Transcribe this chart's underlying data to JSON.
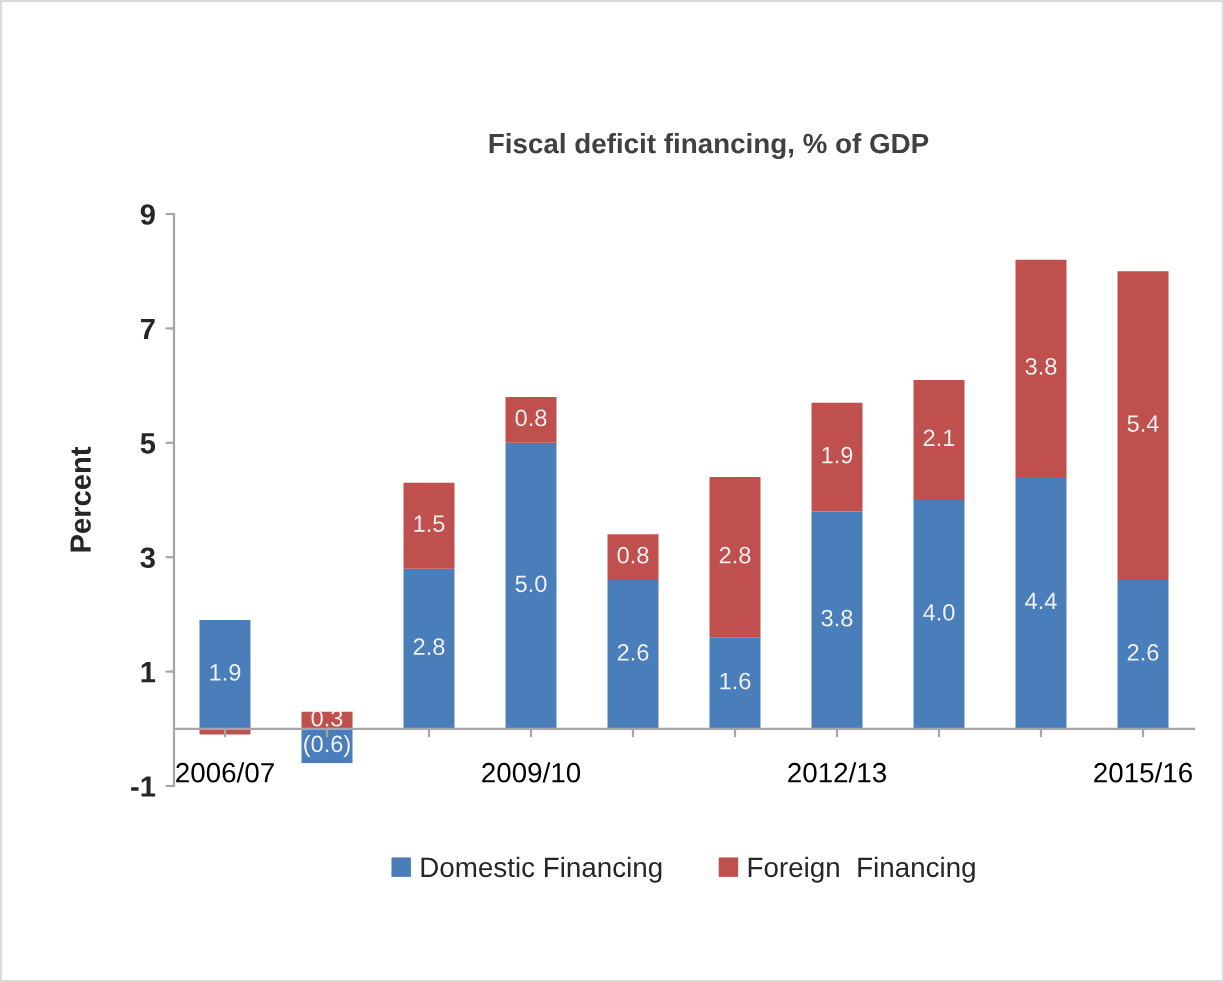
{
  "chart_data": {
    "type": "bar",
    "title": "Fiscal deficit financing, % of GDP",
    "ylabel": "Percent",
    "categories": [
      "2006/07",
      null,
      null,
      "2009/10",
      null,
      null,
      "2012/13",
      null,
      null,
      "2015/16"
    ],
    "stacked": true,
    "series": [
      {
        "name": "Domestic Financing",
        "color": "#4a7ebb",
        "values": [
          1.9,
          -0.6,
          2.8,
          5.0,
          2.6,
          1.6,
          3.8,
          4.0,
          4.4,
          2.6
        ],
        "value_labels": [
          "1.9",
          "(0.6)",
          "2.8",
          "5.0",
          "2.6",
          "1.6",
          "3.8",
          "4.0",
          "4.4",
          "2.6"
        ]
      },
      {
        "name": "Foreign  Financing",
        "color": "#c0504d",
        "values": [
          -0.1,
          0.3,
          1.5,
          0.8,
          0.8,
          2.8,
          1.9,
          2.1,
          3.8,
          5.4
        ],
        "value_labels": [
          null,
          "0.3",
          "1.5",
          "0.8",
          "0.8",
          "2.8",
          "1.9",
          "2.1",
          "3.8",
          "5.4"
        ]
      }
    ],
    "ylim": [
      -1,
      9
    ],
    "yticks": [
      -1,
      1,
      3,
      5,
      7,
      9
    ],
    "legend": "bottom"
  }
}
